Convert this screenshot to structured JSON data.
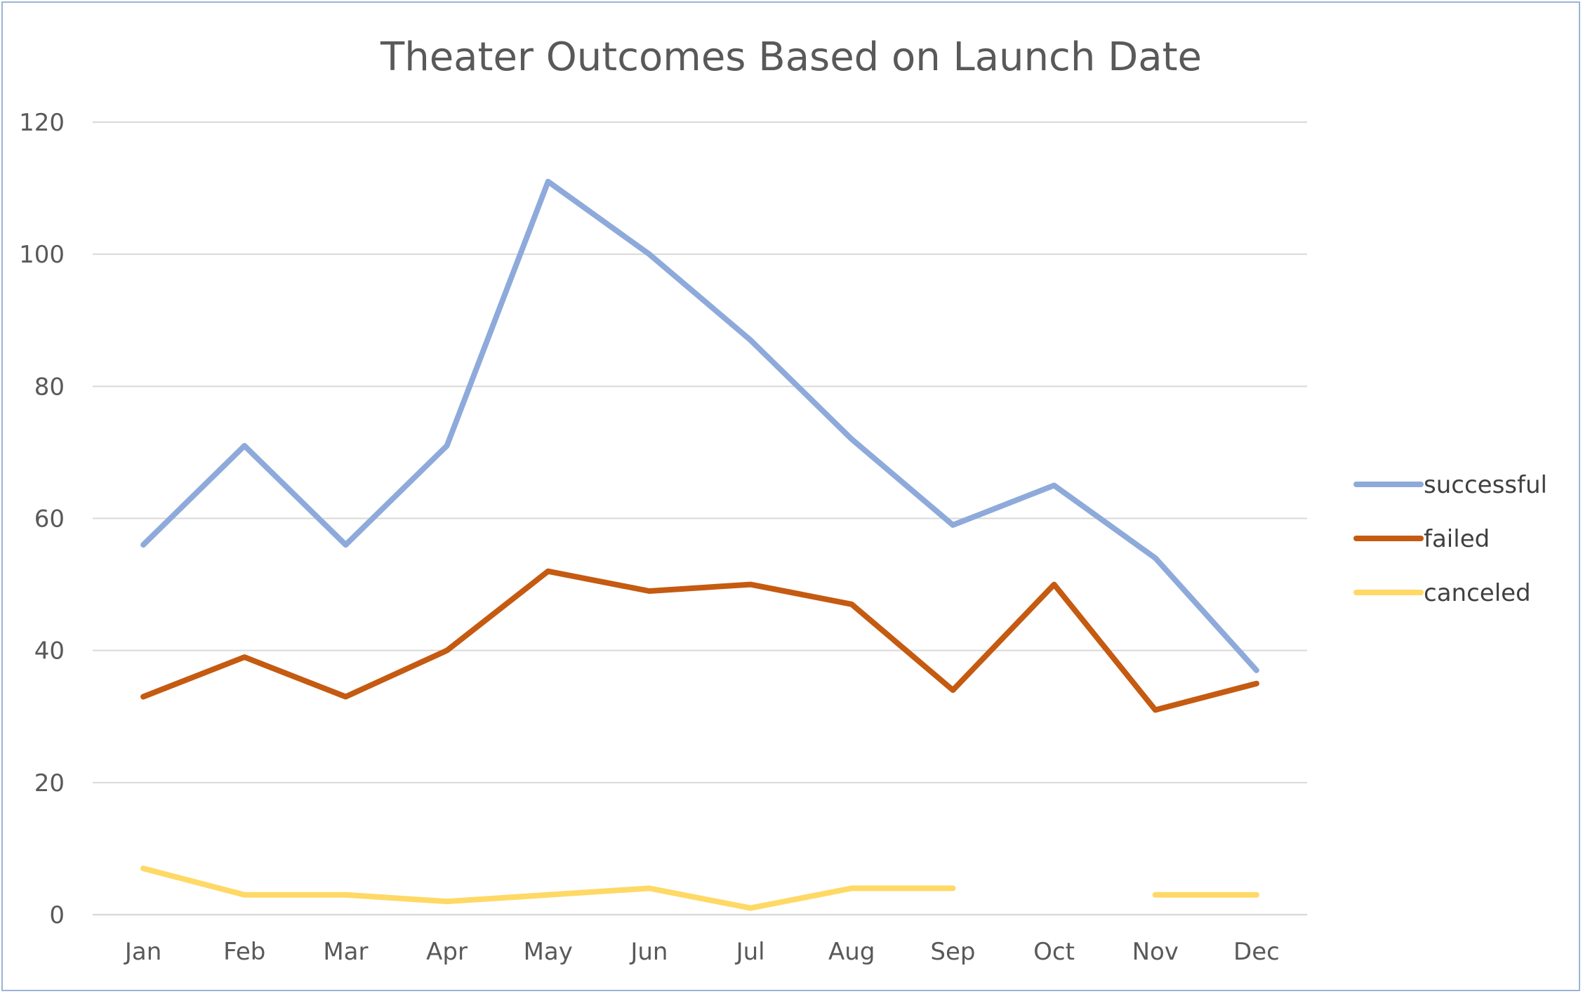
{
  "chart_data": {
    "type": "line",
    "title": "Theater Outcomes Based on Launch Date",
    "xlabel": "",
    "ylabel": "",
    "categories": [
      "Jan",
      "Feb",
      "Mar",
      "Apr",
      "May",
      "Jun",
      "Jul",
      "Aug",
      "Sep",
      "Oct",
      "Nov",
      "Dec"
    ],
    "ylim": [
      0,
      120
    ],
    "yticks": [
      0,
      20,
      40,
      60,
      80,
      100,
      120
    ],
    "grid": true,
    "legend_position": "right",
    "series": [
      {
        "name": "successful",
        "color": "#8eaadb",
        "values": [
          56,
          71,
          56,
          71,
          111,
          100,
          87,
          72,
          59,
          65,
          54,
          37
        ]
      },
      {
        "name": "failed",
        "color": "#c55a11",
        "values": [
          33,
          39,
          33,
          40,
          52,
          49,
          50,
          47,
          34,
          50,
          31,
          35
        ]
      },
      {
        "name": "canceled",
        "color": "#ffd966",
        "values": [
          7,
          3,
          3,
          2,
          3,
          4,
          1,
          4,
          4,
          null,
          3,
          3
        ]
      }
    ]
  }
}
